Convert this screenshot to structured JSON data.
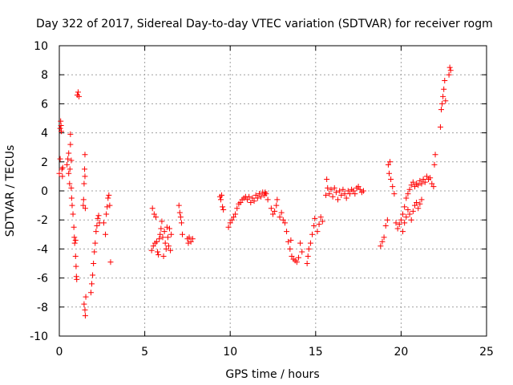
{
  "chart_data": {
    "type": "scatter",
    "title": "Day 322 of 2017, Sidereal Day-to-day VTEC variation (SDTVAR) for receiver rogm",
    "xlabel": "GPS time / hours",
    "ylabel": "SDTVAR / TECUs",
    "xlim": [
      0,
      25
    ],
    "ylim": [
      -10,
      10
    ],
    "x_ticks": [
      0,
      5,
      10,
      15,
      20,
      25
    ],
    "y_ticks": [
      -10,
      -8,
      -6,
      -4,
      -2,
      0,
      2,
      4,
      6,
      8,
      10
    ],
    "grid": true,
    "legend": "none",
    "marker": "+",
    "series": [
      {
        "name": "SDTVAR",
        "color": "#ff0000",
        "points": [
          [
            0.0,
            1.2
          ],
          [
            0.05,
            2.2
          ],
          [
            0.05,
            4.3
          ],
          [
            0.08,
            4.8
          ],
          [
            0.1,
            4.5
          ],
          [
            0.12,
            4.1
          ],
          [
            0.15,
            1.5
          ],
          [
            0.18,
            1.0
          ],
          [
            0.2,
            1.6
          ],
          [
            0.45,
            1.8
          ],
          [
            0.5,
            2.2
          ],
          [
            0.55,
            2.6
          ],
          [
            0.55,
            1.2
          ],
          [
            0.6,
            0.5
          ],
          [
            0.62,
            1.5
          ],
          [
            0.65,
            3.9
          ],
          [
            0.65,
            3.2
          ],
          [
            0.7,
            2.1
          ],
          [
            0.7,
            0.2
          ],
          [
            0.72,
            -0.5
          ],
          [
            0.75,
            -1.0
          ],
          [
            0.8,
            -1.6
          ],
          [
            0.85,
            -2.5
          ],
          [
            0.88,
            -3.2
          ],
          [
            0.9,
            -3.6
          ],
          [
            0.95,
            -3.4
          ],
          [
            0.95,
            -4.5
          ],
          [
            0.98,
            -5.2
          ],
          [
            1.0,
            -5.9
          ],
          [
            1.02,
            -6.1
          ],
          [
            1.05,
            6.6
          ],
          [
            1.1,
            6.8
          ],
          [
            1.15,
            6.5
          ],
          [
            1.4,
            -1.0
          ],
          [
            1.42,
            -0.6
          ],
          [
            1.45,
            0.5
          ],
          [
            1.48,
            1.5
          ],
          [
            1.5,
            2.5
          ],
          [
            1.5,
            1.0
          ],
          [
            1.52,
            -1.2
          ],
          [
            1.45,
            -7.8
          ],
          [
            1.5,
            -8.2
          ],
          [
            1.52,
            -8.6
          ],
          [
            1.55,
            -7.3
          ],
          [
            1.85,
            -7.0
          ],
          [
            1.9,
            -6.4
          ],
          [
            1.95,
            -5.8
          ],
          [
            2.0,
            -5.0
          ],
          [
            2.05,
            -4.2
          ],
          [
            2.1,
            -3.6
          ],
          [
            2.15,
            -2.8
          ],
          [
            2.2,
            -2.4
          ],
          [
            2.25,
            -1.9
          ],
          [
            2.3,
            -1.7
          ],
          [
            2.35,
            -2.2
          ],
          [
            2.6,
            -2.2
          ],
          [
            2.7,
            -3.0
          ],
          [
            2.75,
            -1.6
          ],
          [
            2.8,
            -1.1
          ],
          [
            2.85,
            -0.5
          ],
          [
            2.9,
            -0.3
          ],
          [
            2.95,
            -1.0
          ],
          [
            3.0,
            -4.9
          ],
          [
            5.4,
            -4.1
          ],
          [
            5.45,
            -1.2
          ],
          [
            5.5,
            -3.8
          ],
          [
            5.55,
            -1.6
          ],
          [
            5.6,
            -3.6
          ],
          [
            5.65,
            -1.8
          ],
          [
            5.7,
            -3.5
          ],
          [
            5.75,
            -4.2
          ],
          [
            5.8,
            -4.4
          ],
          [
            5.85,
            -3.3
          ],
          [
            5.9,
            -3.0
          ],
          [
            5.95,
            -2.6
          ],
          [
            6.0,
            -2.1
          ],
          [
            6.05,
            -3.2
          ],
          [
            6.1,
            -4.5
          ],
          [
            6.15,
            -2.8
          ],
          [
            6.2,
            -3.6
          ],
          [
            6.25,
            -4.0
          ],
          [
            6.3,
            -2.5
          ],
          [
            6.35,
            -3.2
          ],
          [
            6.4,
            -3.8
          ],
          [
            6.45,
            -2.6
          ],
          [
            6.5,
            -4.1
          ],
          [
            6.55,
            -3.0
          ],
          [
            7.0,
            -1.0
          ],
          [
            7.05,
            -1.5
          ],
          [
            7.1,
            -1.8
          ],
          [
            7.15,
            -2.2
          ],
          [
            7.2,
            -3.0
          ],
          [
            7.5,
            -3.3
          ],
          [
            7.55,
            -3.6
          ],
          [
            7.6,
            -3.2
          ],
          [
            7.7,
            -3.5
          ],
          [
            7.8,
            -3.3
          ],
          [
            9.4,
            -0.4
          ],
          [
            9.45,
            -0.6
          ],
          [
            9.5,
            -0.3
          ],
          [
            9.55,
            -1.1
          ],
          [
            9.6,
            -1.3
          ],
          [
            9.9,
            -2.5
          ],
          [
            10.0,
            -2.2
          ],
          [
            10.1,
            -2.0
          ],
          [
            10.2,
            -1.8
          ],
          [
            10.3,
            -1.6
          ],
          [
            10.4,
            -1.2
          ],
          [
            10.5,
            -0.9
          ],
          [
            10.6,
            -0.8
          ],
          [
            10.7,
            -0.6
          ],
          [
            10.8,
            -0.5
          ],
          [
            10.9,
            -0.4
          ],
          [
            11.0,
            -0.6
          ],
          [
            11.1,
            -0.4
          ],
          [
            11.2,
            -0.8
          ],
          [
            11.3,
            -0.5
          ],
          [
            11.4,
            -0.7
          ],
          [
            11.5,
            -0.3
          ],
          [
            11.6,
            -0.5
          ],
          [
            11.7,
            -0.2
          ],
          [
            11.8,
            -0.4
          ],
          [
            11.9,
            -0.1
          ],
          [
            12.0,
            -0.3
          ],
          [
            12.05,
            -0.1
          ],
          [
            12.1,
            -0.2
          ],
          [
            12.2,
            -0.6
          ],
          [
            12.4,
            -1.2
          ],
          [
            12.5,
            -1.6
          ],
          [
            12.6,
            -1.4
          ],
          [
            12.7,
            -1.0
          ],
          [
            12.75,
            -0.6
          ],
          [
            12.9,
            -1.8
          ],
          [
            13.0,
            -1.5
          ],
          [
            13.1,
            -2.0
          ],
          [
            13.2,
            -2.2
          ],
          [
            13.3,
            -2.8
          ],
          [
            13.4,
            -3.5
          ],
          [
            13.5,
            -4.0
          ],
          [
            13.55,
            -3.4
          ],
          [
            13.6,
            -4.5
          ],
          [
            13.7,
            -4.7
          ],
          [
            13.8,
            -4.8
          ],
          [
            13.9,
            -4.9
          ],
          [
            14.0,
            -4.6
          ],
          [
            14.1,
            -3.6
          ],
          [
            14.2,
            -4.2
          ],
          [
            14.5,
            -5.0
          ],
          [
            14.55,
            -4.5
          ],
          [
            14.6,
            -4.0
          ],
          [
            14.7,
            -3.6
          ],
          [
            14.8,
            -3.0
          ],
          [
            14.9,
            -2.4
          ],
          [
            14.95,
            -1.9
          ],
          [
            15.1,
            -2.8
          ],
          [
            15.2,
            -2.3
          ],
          [
            15.3,
            -1.8
          ],
          [
            15.4,
            -2.1
          ],
          [
            15.6,
            -0.3
          ],
          [
            15.65,
            0.8
          ],
          [
            15.7,
            0.2
          ],
          [
            15.8,
            -0.2
          ],
          [
            15.9,
            0.1
          ],
          [
            16.0,
            -0.4
          ],
          [
            16.1,
            0.2
          ],
          [
            16.2,
            -0.1
          ],
          [
            16.3,
            -0.6
          ],
          [
            16.4,
            0.0
          ],
          [
            16.5,
            -0.3
          ],
          [
            16.6,
            0.1
          ],
          [
            16.7,
            -0.2
          ],
          [
            16.8,
            -0.5
          ],
          [
            16.9,
            0.0
          ],
          [
            17.0,
            -0.2
          ],
          [
            17.1,
            0.1
          ],
          [
            17.2,
            0.0
          ],
          [
            17.3,
            -0.2
          ],
          [
            17.4,
            0.2
          ],
          [
            17.5,
            0.3
          ],
          [
            17.6,
            0.1
          ],
          [
            17.7,
            -0.1
          ],
          [
            17.8,
            0.0
          ],
          [
            18.8,
            -3.8
          ],
          [
            18.9,
            -3.5
          ],
          [
            19.0,
            -3.2
          ],
          [
            19.1,
            -2.4
          ],
          [
            19.2,
            -2.0
          ],
          [
            19.25,
            1.8
          ],
          [
            19.3,
            1.2
          ],
          [
            19.35,
            2.0
          ],
          [
            19.4,
            0.8
          ],
          [
            19.5,
            0.3
          ],
          [
            19.6,
            -0.2
          ],
          [
            19.7,
            -2.2
          ],
          [
            19.8,
            -2.6
          ],
          [
            19.9,
            -2.3
          ],
          [
            20.0,
            -2.0
          ],
          [
            20.1,
            -1.6
          ],
          [
            20.2,
            -1.1
          ],
          [
            20.3,
            -0.5
          ],
          [
            20.4,
            -0.2
          ],
          [
            20.5,
            0.1
          ],
          [
            20.6,
            0.4
          ],
          [
            20.7,
            0.6
          ],
          [
            20.8,
            0.3
          ],
          [
            20.9,
            0.5
          ],
          [
            21.0,
            0.4
          ],
          [
            21.1,
            0.7
          ],
          [
            21.2,
            0.5
          ],
          [
            21.3,
            0.8
          ],
          [
            21.4,
            0.6
          ],
          [
            21.5,
            1.0
          ],
          [
            21.6,
            0.8
          ],
          [
            21.7,
            0.9
          ],
          [
            21.8,
            0.5
          ],
          [
            21.9,
            0.3
          ],
          [
            21.95,
            1.8
          ],
          [
            22.0,
            2.5
          ],
          [
            20.1,
            -2.8
          ],
          [
            20.2,
            -2.2
          ],
          [
            20.3,
            -1.8
          ],
          [
            20.4,
            -1.3
          ],
          [
            20.5,
            -1.6
          ],
          [
            20.6,
            -2.0
          ],
          [
            20.7,
            -1.4
          ],
          [
            20.8,
            -1.0
          ],
          [
            20.9,
            -0.8
          ],
          [
            21.0,
            -1.2
          ],
          [
            21.1,
            -0.9
          ],
          [
            21.2,
            -0.6
          ],
          [
            22.3,
            4.4
          ],
          [
            22.35,
            5.6
          ],
          [
            22.4,
            6.0
          ],
          [
            22.45,
            6.5
          ],
          [
            22.5,
            7.0
          ],
          [
            22.55,
            7.6
          ],
          [
            22.6,
            6.2
          ],
          [
            22.8,
            8.0
          ],
          [
            22.85,
            8.5
          ],
          [
            22.9,
            8.3
          ]
        ]
      }
    ]
  }
}
